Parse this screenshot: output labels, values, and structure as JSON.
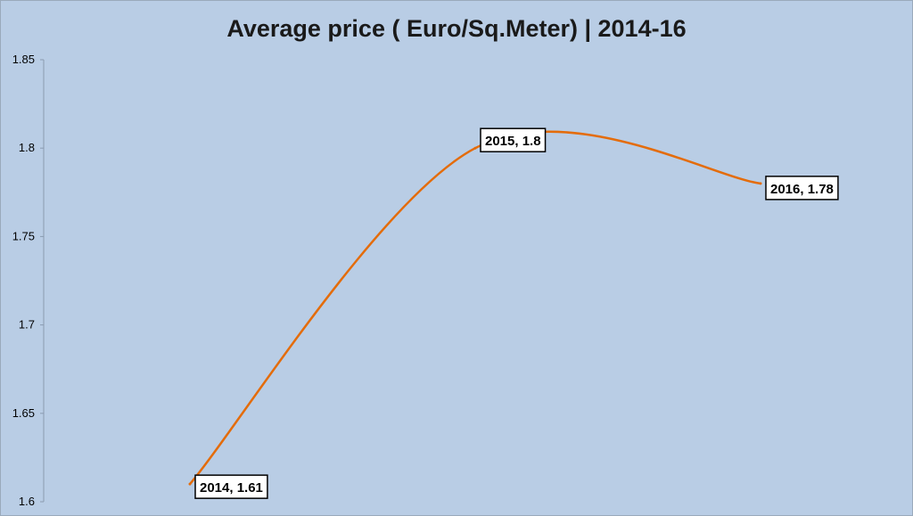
{
  "chart_data": {
    "type": "line",
    "title": "Average price ( Euro/Sq.Meter) | 2014-16",
    "xlabel": "",
    "ylabel": "",
    "ylim": [
      1.6,
      1.85
    ],
    "yticks": [
      "1.6",
      "1.65",
      "1.7",
      "1.75",
      "1.8",
      "1.85"
    ],
    "categories": [
      "2014",
      "2015",
      "2016"
    ],
    "series": [
      {
        "values": [
          1.61,
          1.8,
          1.78
        ]
      }
    ],
    "data_labels": [
      "2014, 1.61",
      "2015, 1.8",
      "2016, 1.78"
    ],
    "line_color": "#e46c0a",
    "background_color": "#b9cde5",
    "smooth": true,
    "grid": false
  }
}
